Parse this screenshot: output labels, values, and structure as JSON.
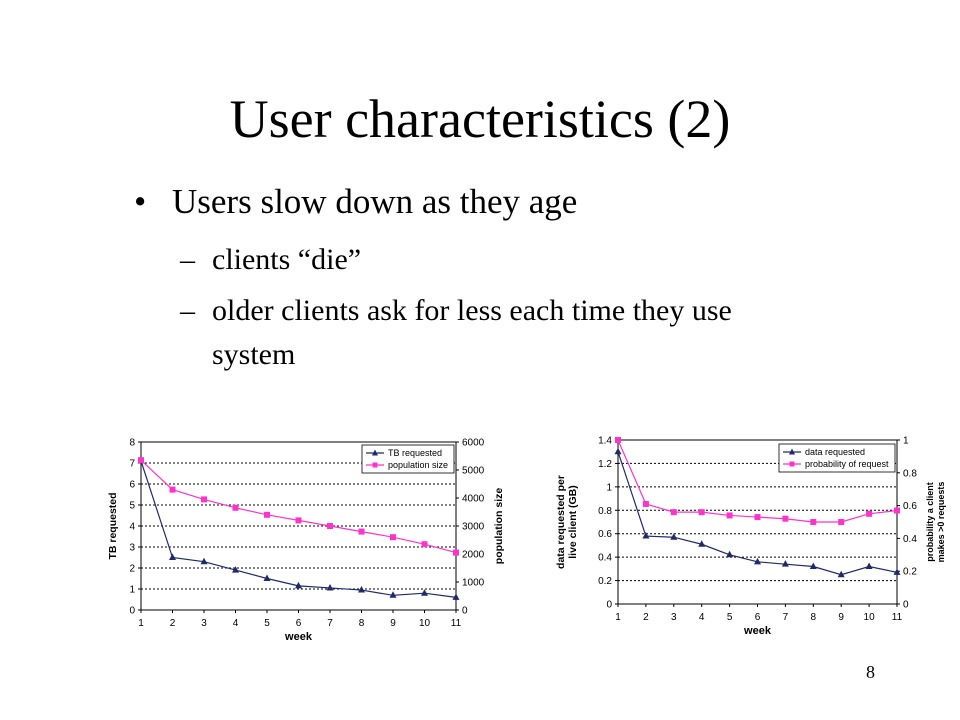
{
  "slide": {
    "title": "User characteristics (2)",
    "bullet": "Users slow down as they age",
    "bullet_marker": "•",
    "sub1": "clients “die”",
    "sub2_line1": "older clients ask for less each time they use",
    "sub2_line2": "system",
    "dash": "–",
    "page_number": "8"
  },
  "chart_data": [
    {
      "type": "line",
      "x": [
        1,
        2,
        3,
        4,
        5,
        6,
        7,
        8,
        9,
        10,
        11
      ],
      "xticks": [
        "1",
        "2",
        "3",
        "4",
        "5",
        "6",
        "7",
        "8",
        "9",
        "10",
        "11"
      ],
      "xlabel": "week",
      "ylabel": "TB requested",
      "y2label": "population size",
      "ylim": [
        0,
        8
      ],
      "yticks": [
        "0",
        "1",
        "2",
        "3",
        "4",
        "5",
        "6",
        "7",
        "8"
      ],
      "y2lim": [
        0,
        6000
      ],
      "y2ticks": [
        "0",
        "1000",
        "2000",
        "3000",
        "4000",
        "5000",
        "6000"
      ],
      "grid": "horizontal-dotted",
      "legend_position": "top-right",
      "series": [
        {
          "name": "TB requested",
          "axis": "left",
          "color": "#1f2a6b",
          "marker": "triangle",
          "values": [
            7.1,
            2.5,
            2.3,
            1.9,
            1.5,
            1.15,
            1.05,
            0.95,
            0.7,
            0.8,
            0.6
          ]
        },
        {
          "name": "population size",
          "axis": "right",
          "color": "#ff33cc",
          "marker": "square",
          "values": [
            5350,
            4300,
            3950,
            3650,
            3400,
            3200,
            3000,
            2800,
            2600,
            2350,
            2050
          ]
        }
      ]
    },
    {
      "type": "line",
      "x": [
        1,
        2,
        3,
        4,
        5,
        6,
        7,
        8,
        9,
        10,
        11
      ],
      "xticks": [
        "1",
        "2",
        "3",
        "4",
        "5",
        "6",
        "7",
        "8",
        "9",
        "10",
        "11"
      ],
      "xlabel": "week",
      "ylabel_lines": [
        "data requested per",
        "live client (GB)"
      ],
      "y2label_lines": [
        "probability a client",
        "makes >0 requests"
      ],
      "ylim": [
        0,
        1.4
      ],
      "yticks": [
        "0",
        "0.2",
        "0.4",
        "0.6",
        "0.8",
        "1",
        "1.2",
        "1.4"
      ],
      "y2lim": [
        0,
        1
      ],
      "y2ticks": [
        "0",
        "0.2",
        "0.4",
        "0.6",
        "0.8",
        "1"
      ],
      "grid": "horizontal-dotted",
      "legend_position": "top-right",
      "series": [
        {
          "name": "data requested",
          "axis": "left",
          "color": "#1f2a6b",
          "marker": "triangle",
          "values": [
            1.3,
            0.58,
            0.57,
            0.51,
            0.42,
            0.36,
            0.34,
            0.32,
            0.25,
            0.32,
            0.27
          ]
        },
        {
          "name": "probability of request",
          "axis": "right",
          "color": "#ff33cc",
          "marker": "square",
          "values": [
            1.0,
            0.61,
            0.56,
            0.56,
            0.54,
            0.53,
            0.52,
            0.5,
            0.5,
            0.55,
            0.57
          ]
        }
      ]
    }
  ]
}
